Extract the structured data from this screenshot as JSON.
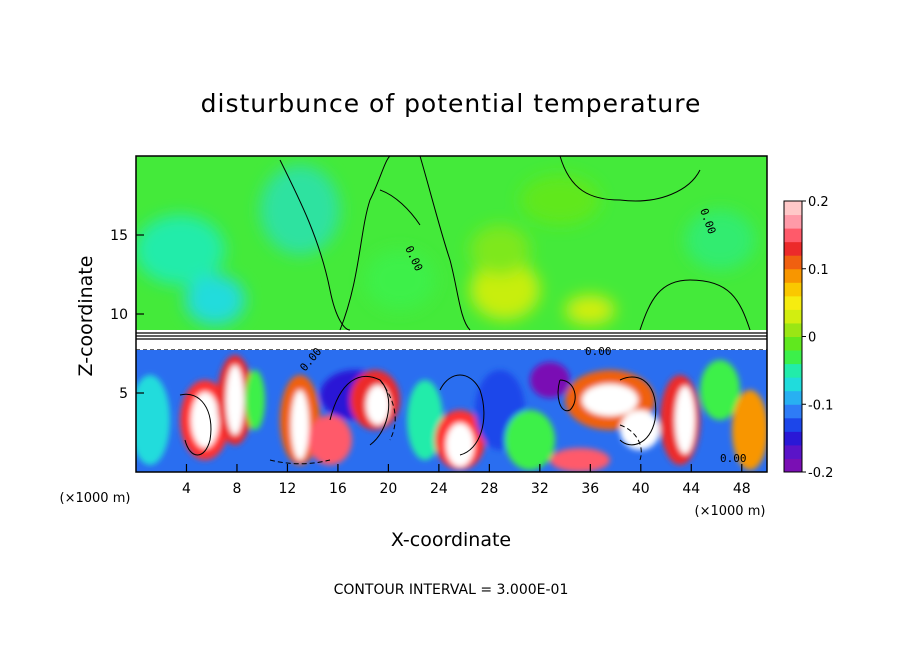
{
  "chart_data": {
    "type": "heatmap",
    "title": "disturbunce of potential temperature",
    "xlabel": "X-coordinate",
    "ylabel": "Z-coordinate",
    "x_unit": "(×1000 m)",
    "y_unit": "(×1000 m)",
    "xlim": [
      0,
      50
    ],
    "ylim": [
      0,
      20
    ],
    "x_ticks": [
      4,
      8,
      12,
      16,
      20,
      24,
      28,
      32,
      36,
      40,
      44,
      48
    ],
    "y_ticks": [
      5,
      10,
      15
    ],
    "colorbar": {
      "range": [
        -0.2,
        0.2
      ],
      "tick_labels": [
        "0.2",
        "0.1",
        "0",
        "-0.1",
        "-0.2"
      ],
      "tick_values": [
        0.2,
        0.1,
        0,
        -0.1,
        -0.2
      ],
      "colors": [
        "#7a0fb4",
        "#5a14c8",
        "#2a18d6",
        "#1c46ea",
        "#2e7cf6",
        "#28b0f2",
        "#20dcdc",
        "#22ecaa",
        "#3cf04a",
        "#60e81e",
        "#9ae614",
        "#d2ee10",
        "#f6ec10",
        "#fac800",
        "#f89600",
        "#f06010",
        "#ec2a2a",
        "#ff5a6a",
        "#ff9aa8",
        "#ffc8c8"
      ]
    },
    "contour_labels": [
      "0.00",
      "0.00",
      "0.00",
      "0.00",
      "0.00"
    ],
    "annotation": "CONTOUR INTERVAL = 3.000E-01"
  }
}
